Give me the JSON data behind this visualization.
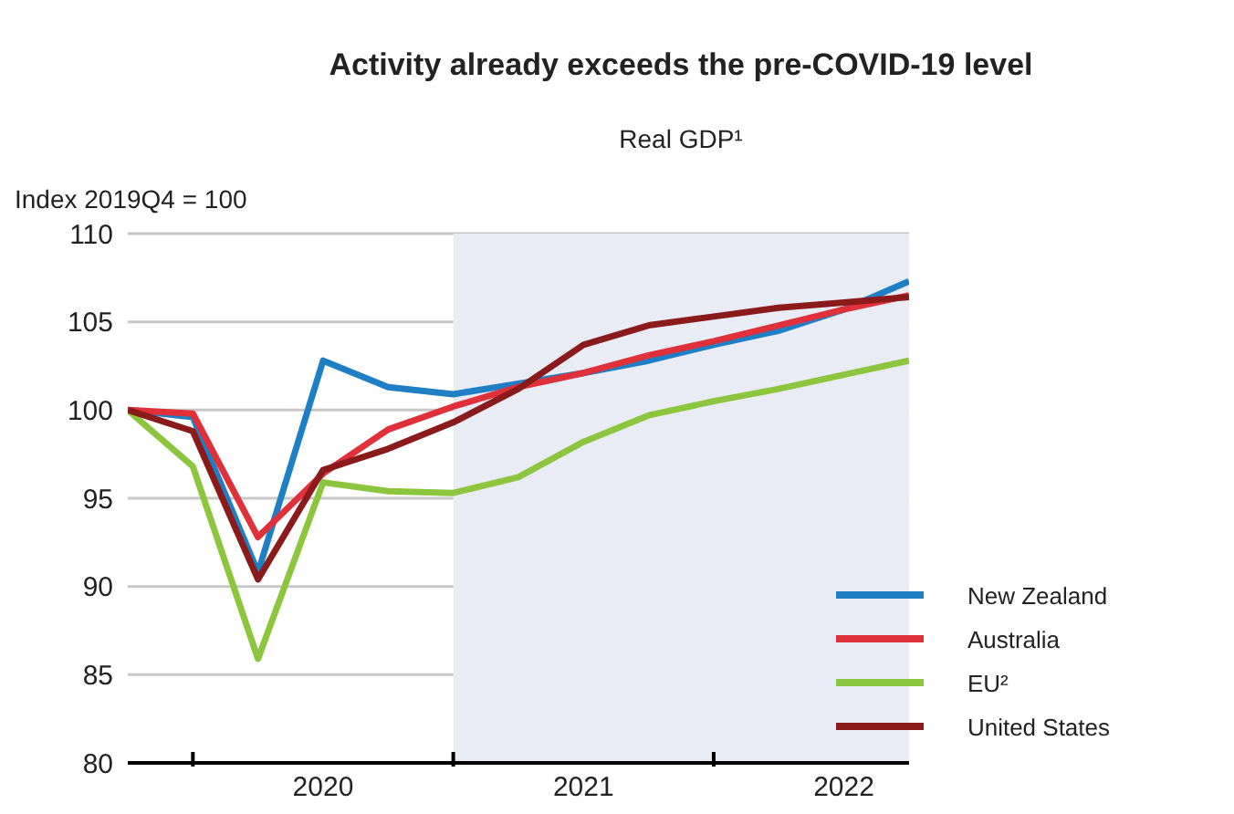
{
  "chart_data": {
    "type": "line",
    "title": "Activity already exceeds the pre-COVID-19 level",
    "subtitle": "Real GDP¹",
    "ylabel": "Index 2019Q4 = 100",
    "x": [
      2019.75,
      2020,
      2020.25,
      2020.5,
      2020.75,
      2021,
      2021.25,
      2021.5,
      2021.75,
      2022,
      2022.25,
      2022.5,
      2022.75
    ],
    "series": [
      {
        "name": "New Zealand",
        "color": "#1f7fc4",
        "values": [
          100,
          99.6,
          90.8,
          102.8,
          101.3,
          100.9,
          101.5,
          102.1,
          102.8,
          103.7,
          104.5,
          105.7,
          107.3
        ]
      },
      {
        "name": "Australia",
        "color": "#e0303a",
        "values": [
          100,
          99.8,
          92.8,
          96.4,
          98.9,
          100.2,
          101.3,
          102.1,
          103.1,
          103.9,
          104.8,
          105.7,
          106.5
        ]
      },
      {
        "name": "EU²",
        "color": "#8cc63f",
        "values": [
          100,
          96.8,
          85.9,
          95.9,
          95.4,
          95.3,
          96.2,
          98.2,
          99.7,
          100.5,
          101.2,
          102.0,
          102.8
        ]
      },
      {
        "name": "United States",
        "color": "#8b1a1a",
        "values": [
          100,
          98.8,
          90.4,
          96.6,
          97.8,
          99.3,
          101.2,
          103.7,
          104.8,
          105.3,
          105.8,
          106.1,
          106.4
        ]
      }
    ],
    "xlim": [
      2019.75,
      2022.75
    ],
    "xticks": [
      {
        "value": 2020,
        "label": null
      },
      {
        "value": 2020.5,
        "label": "2020"
      },
      {
        "value": 2021,
        "label": null
      },
      {
        "value": 2021.5,
        "label": "2021"
      },
      {
        "value": 2022,
        "label": null
      },
      {
        "value": 2022.5,
        "label": "2022"
      }
    ],
    "ylim": [
      80,
      110
    ],
    "yticks": [
      80,
      85,
      90,
      95,
      100,
      105,
      110
    ],
    "bands": [
      {
        "axis": "x",
        "from": 2021,
        "to": 2022.75,
        "color": "#e9ecf4"
      }
    ],
    "grid": "y",
    "legend": "bottom right",
    "line_style": "solid",
    "marker": "none"
  }
}
